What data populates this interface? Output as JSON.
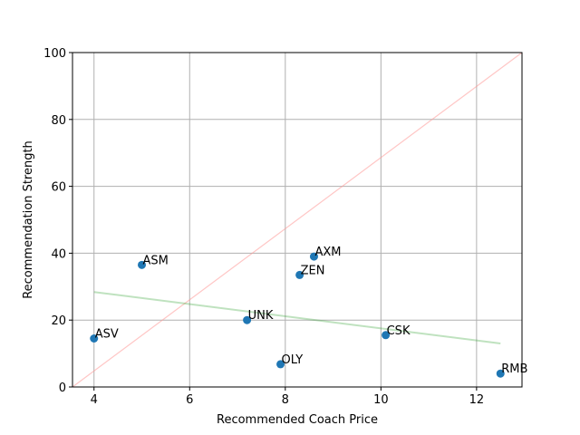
{
  "chart_data": {
    "type": "scatter",
    "title": "",
    "xlabel": "Recommended Coach Price",
    "ylabel": "Recommendation Strength",
    "xlim": [
      3.55,
      12.95
    ],
    "ylim": [
      0,
      100
    ],
    "xticks": [
      4,
      6,
      8,
      10,
      12
    ],
    "yticks": [
      0,
      20,
      40,
      60,
      80,
      100
    ],
    "grid": true,
    "legend": "none",
    "points": [
      {
        "label": "ASV",
        "x": 4.0,
        "y": 14.5
      },
      {
        "label": "ASM",
        "x": 5.0,
        "y": 36.5
      },
      {
        "label": "UNK",
        "x": 7.2,
        "y": 20.0
      },
      {
        "label": "OLY",
        "x": 7.9,
        "y": 6.8
      },
      {
        "label": "ZEN",
        "x": 8.3,
        "y": 33.5
      },
      {
        "label": "AXM",
        "x": 8.6,
        "y": 39.0
      },
      {
        "label": "CSK",
        "x": 10.1,
        "y": 15.5
      },
      {
        "label": "RMB",
        "x": 12.5,
        "y": 4.0
      }
    ],
    "trend_line": {
      "x": [
        4.0,
        12.5
      ],
      "y": [
        28.4,
        13.0
      ],
      "color": "#2ca02c"
    },
    "reference_line": {
      "x": [
        3.55,
        12.95
      ],
      "y": [
        0,
        100
      ],
      "color": "#ff9896"
    },
    "colors": {
      "points": "#1f77b4",
      "grid": "#b0b0b0",
      "axis": "#000000"
    }
  }
}
